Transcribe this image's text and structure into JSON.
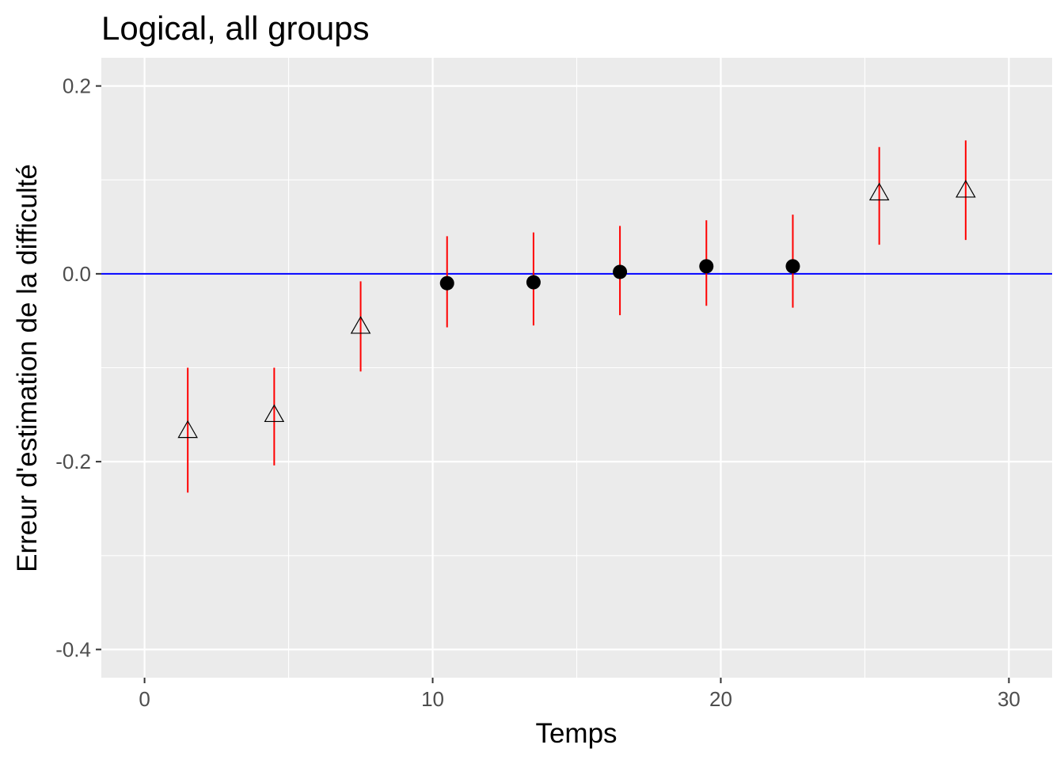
{
  "chart_data": {
    "type": "scatter",
    "title": "Logical, all groups",
    "xlabel": "Temps",
    "ylabel": "Erreur d'estimation de la difficulté",
    "xlim": [
      -1.5,
      31.5
    ],
    "ylim": [
      -0.43,
      0.23
    ],
    "x_ticks": [
      0,
      10,
      20,
      30
    ],
    "x_tick_labels": [
      "0",
      "10",
      "20",
      "30"
    ],
    "x_minor": [
      5,
      15,
      25
    ],
    "y_ticks": [
      -0.4,
      -0.2,
      0.0,
      0.2
    ],
    "y_tick_labels": [
      "-0.4",
      "-0.2",
      "0.0",
      "0.2"
    ],
    "y_minor": [
      -0.3,
      -0.1,
      0.1
    ],
    "grid": true,
    "reference_line": {
      "y": 0,
      "color": "#0000ff"
    },
    "points": [
      {
        "x": 1.5,
        "y": -0.167,
        "ymin": -0.233,
        "ymax": -0.1,
        "shape": "triangle-open"
      },
      {
        "x": 4.5,
        "y": -0.15,
        "ymin": -0.204,
        "ymax": -0.1,
        "shape": "triangle-open"
      },
      {
        "x": 7.5,
        "y": -0.056,
        "ymin": -0.104,
        "ymax": -0.008,
        "shape": "triangle-open"
      },
      {
        "x": 10.5,
        "y": -0.01,
        "ymin": -0.057,
        "ymax": 0.04,
        "shape": "circle-filled"
      },
      {
        "x": 13.5,
        "y": -0.009,
        "ymin": -0.055,
        "ymax": 0.044,
        "shape": "circle-filled"
      },
      {
        "x": 16.5,
        "y": 0.002,
        "ymin": -0.044,
        "ymax": 0.051,
        "shape": "circle-filled"
      },
      {
        "x": 19.5,
        "y": 0.008,
        "ymin": -0.034,
        "ymax": 0.057,
        "shape": "circle-filled"
      },
      {
        "x": 22.5,
        "y": 0.008,
        "ymin": -0.036,
        "ymax": 0.063,
        "shape": "circle-filled"
      },
      {
        "x": 25.5,
        "y": 0.086,
        "ymin": 0.031,
        "ymax": 0.135,
        "shape": "triangle-open"
      },
      {
        "x": 28.5,
        "y": 0.089,
        "ymin": 0.036,
        "ymax": 0.142,
        "shape": "triangle-open"
      }
    ],
    "colors": {
      "panel": "#ebebeb",
      "grid": "#ffffff",
      "errorbar": "#ff0000",
      "point": "#000000"
    }
  }
}
